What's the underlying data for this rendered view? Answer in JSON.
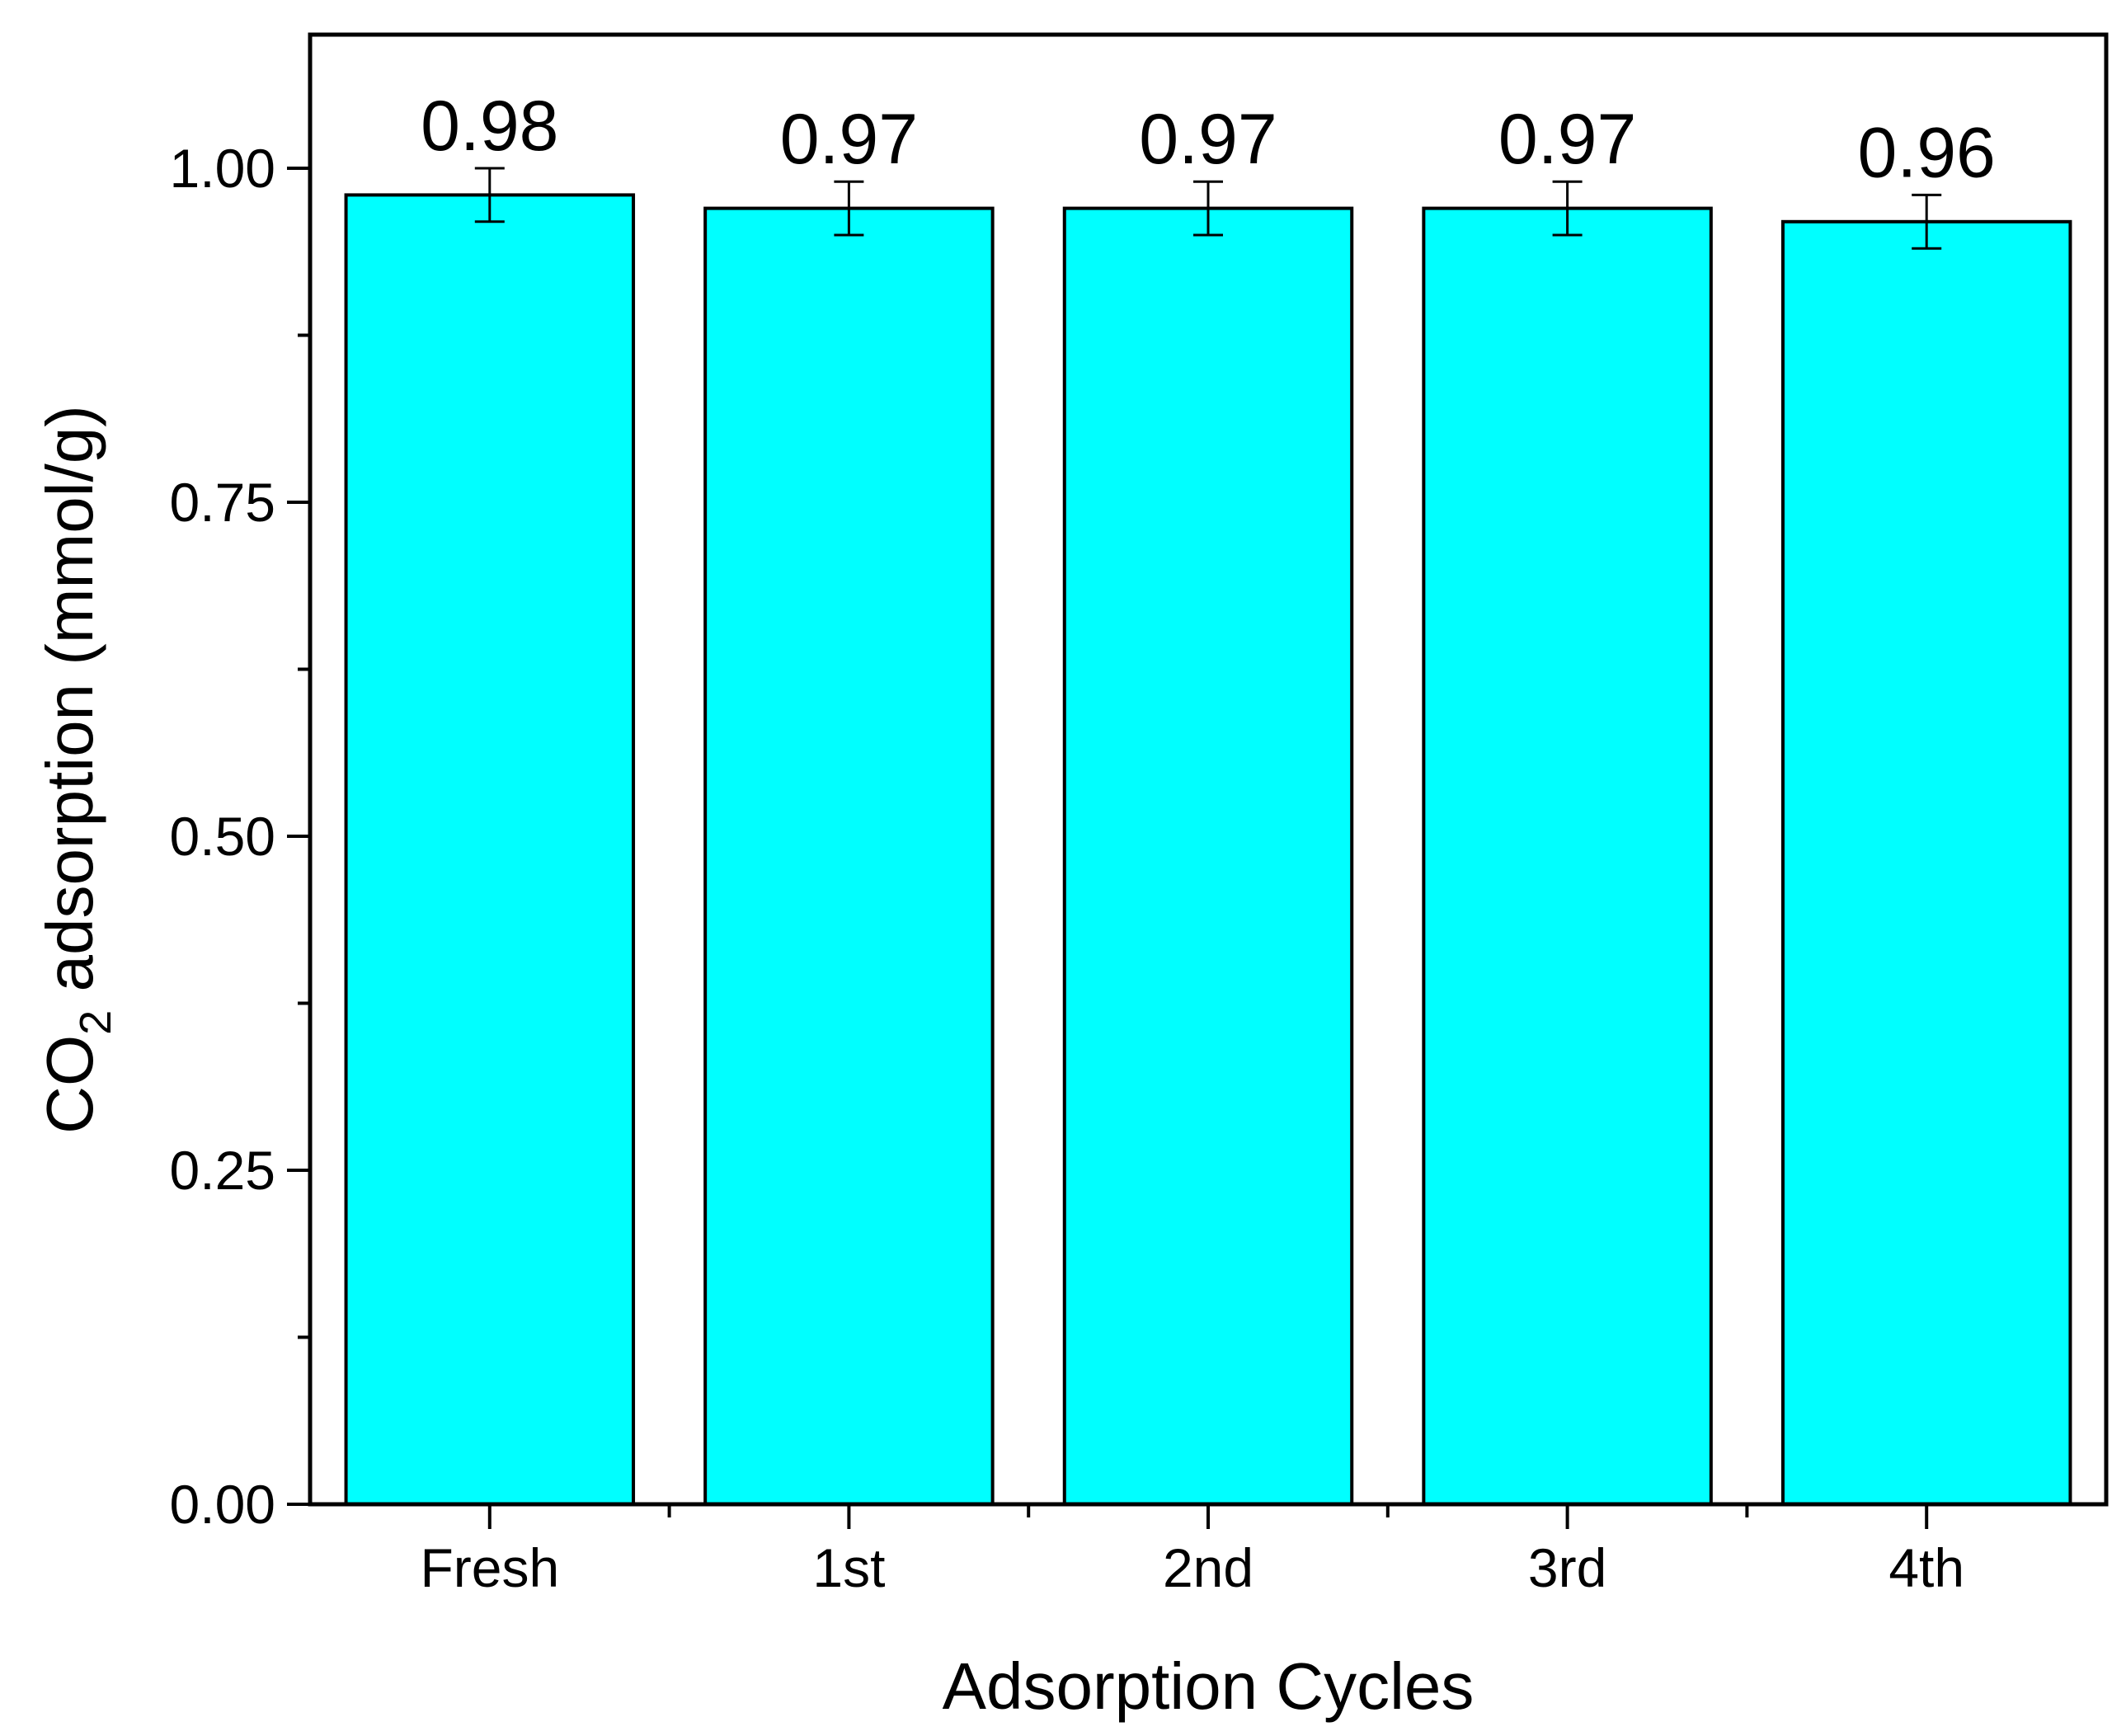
{
  "chart_data": {
    "type": "bar",
    "title": "",
    "xlabel": "Adsorption Cycles",
    "ylabel": {
      "prefix": "CO",
      "subscript": "2",
      "suffix": " adsorption (mmol/g)"
    },
    "categories": [
      "Fresh",
      "1st",
      "2nd",
      "3rd",
      "4th"
    ],
    "values": [
      0.98,
      0.97,
      0.97,
      0.97,
      0.96
    ],
    "value_labels": [
      "0.98",
      "0.97",
      "0.97",
      "0.97",
      "0.96"
    ],
    "errors": [
      0.02,
      0.02,
      0.02,
      0.02,
      0.02
    ],
    "ylim": [
      0,
      1.1
    ],
    "yticks": [
      0.0,
      0.25,
      0.5,
      0.75,
      1.0
    ],
    "ytick_labels": [
      "0.00",
      "0.25",
      "0.50",
      "0.75",
      "1.00"
    ],
    "minor_yticks": [
      0.125,
      0.375,
      0.625,
      0.875
    ],
    "grid": false,
    "legend": "none",
    "bar_color": "#00FFFF",
    "edge_color": "#000000"
  }
}
